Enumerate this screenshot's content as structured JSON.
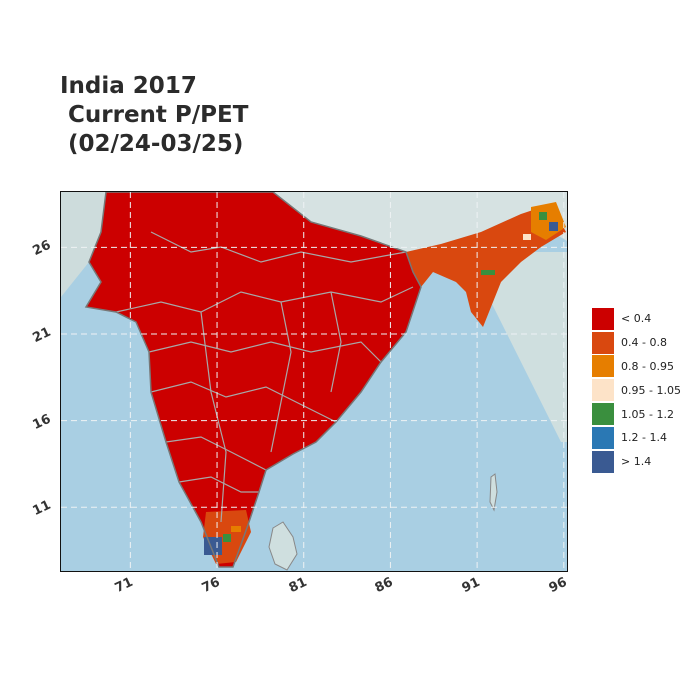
{
  "title": {
    "line1": "India 2017",
    "line2": " Current P/PET",
    "line3": " (02/24-03/25)"
  },
  "map": {
    "region": "India",
    "lon_range": [
      67,
      96.3
    ],
    "lat_range": [
      7.2,
      29.2
    ],
    "x_ticks": [
      "71",
      "76",
      "81",
      "86",
      "91",
      "96"
    ],
    "y_ticks": [
      "26",
      "21",
      "16",
      "11"
    ],
    "gridlines": "dashed",
    "colors": {
      "ocean": "#a9cfe3",
      "terrain": "#cfdfe0",
      "border": "#a8a8a8"
    }
  },
  "legend": {
    "placement": "right",
    "items": [
      {
        "label": "< 0.4",
        "color": "#cc0000"
      },
      {
        "label": "0.4 - 0.8",
        "color": "#d9480f"
      },
      {
        "label": "0.8 - 0.95",
        "color": "#e67e00"
      },
      {
        "label": "0.95 - 1.05",
        "color": "#fde3c8"
      },
      {
        "label": "1.05 - 1.2",
        "color": "#3a8f3e"
      },
      {
        "label": "1.2 - 1.4",
        "color": "#2a78b4"
      },
      {
        "label": "> 1.4",
        "color": "#3a5a92"
      }
    ]
  }
}
